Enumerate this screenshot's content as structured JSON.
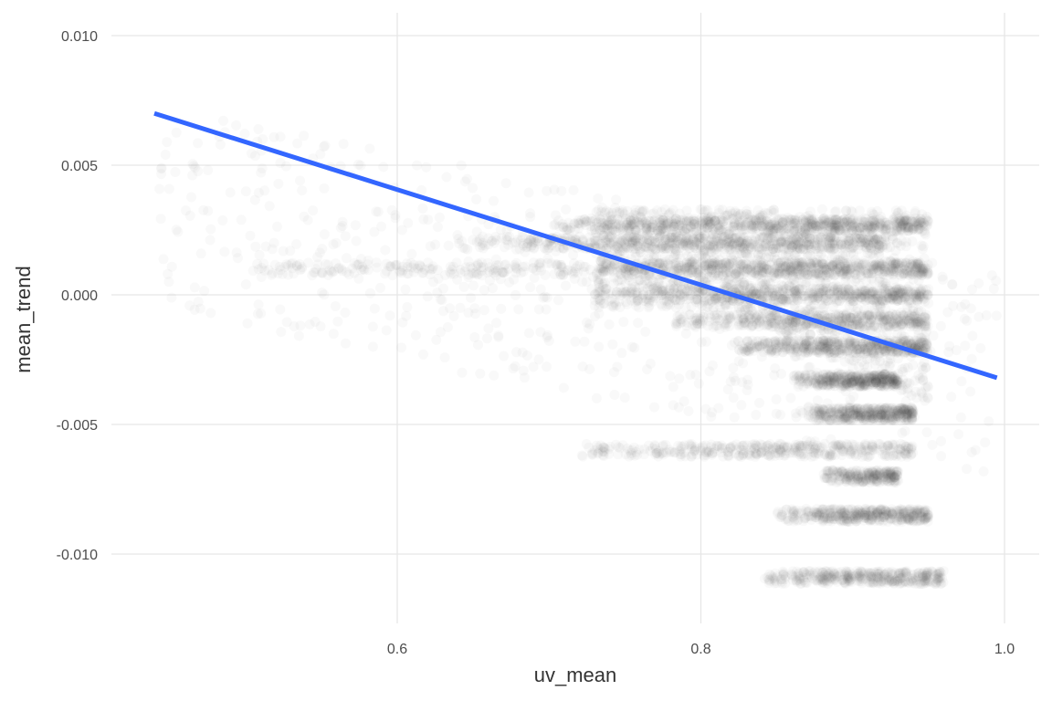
{
  "chart_data": {
    "type": "scatter",
    "title": "",
    "xlabel": "uv_mean",
    "ylabel": "mean_trend",
    "xlim": [
      0.4,
      1.0
    ],
    "ylim": [
      -0.0125,
      0.0105
    ],
    "x_ticks": [
      0.6,
      0.8,
      1.0
    ],
    "x_tick_labels": [
      "0.6",
      "0.8",
      "1.0"
    ],
    "y_ticks": [
      0.01,
      0.005,
      0.0,
      -0.005,
      -0.01
    ],
    "y_tick_labels": [
      "0.010",
      "0.005",
      "0.000",
      "-0.005",
      "-0.010"
    ],
    "grid": true,
    "legend": "none",
    "point_color": "#333333",
    "point_alpha": 0.03,
    "trend_line": {
      "method": "linear",
      "color": "#3366ff",
      "x": [
        0.44,
        0.995
      ],
      "y": [
        0.007,
        -0.0032
      ]
    },
    "series": [
      {
        "bands": [
          {
            "x": [
              0.7,
              0.95
            ],
            "y": 0.0027,
            "density": 0.9
          },
          {
            "x": [
              0.64,
              0.92
            ],
            "y": 0.002,
            "density": 0.8
          },
          {
            "x": [
              0.72,
              0.95
            ],
            "y": 0.001,
            "density": 0.9
          },
          {
            "x": [
              0.5,
              0.72
            ],
            "y": 0.001,
            "density": 0.25
          },
          {
            "x": [
              0.75,
              0.95
            ],
            "y": 0.0,
            "density": 0.7
          },
          {
            "x": [
              0.78,
              0.95
            ],
            "y": -0.001,
            "density": 0.6
          },
          {
            "x": [
              0.82,
              0.95
            ],
            "y": -0.002,
            "density": 0.7
          },
          {
            "x": [
              0.86,
              0.93
            ],
            "y": -0.0033,
            "density": 0.6
          },
          {
            "x": [
              0.87,
              0.94
            ],
            "y": -0.0046,
            "density": 0.6
          },
          {
            "x": [
              0.72,
              0.94
            ],
            "y": -0.006,
            "density": 0.55
          },
          {
            "x": [
              0.88,
              0.93
            ],
            "y": -0.007,
            "density": 0.35
          },
          {
            "x": [
              0.85,
              0.95
            ],
            "y": -0.0085,
            "density": 0.6
          },
          {
            "x": [
              0.84,
              0.96
            ],
            "y": -0.0109,
            "density": 0.55
          }
        ],
        "x_range": [
          0.44,
          0.995
        ],
        "y_range": [
          -0.0118,
          0.0098
        ]
      }
    ]
  }
}
